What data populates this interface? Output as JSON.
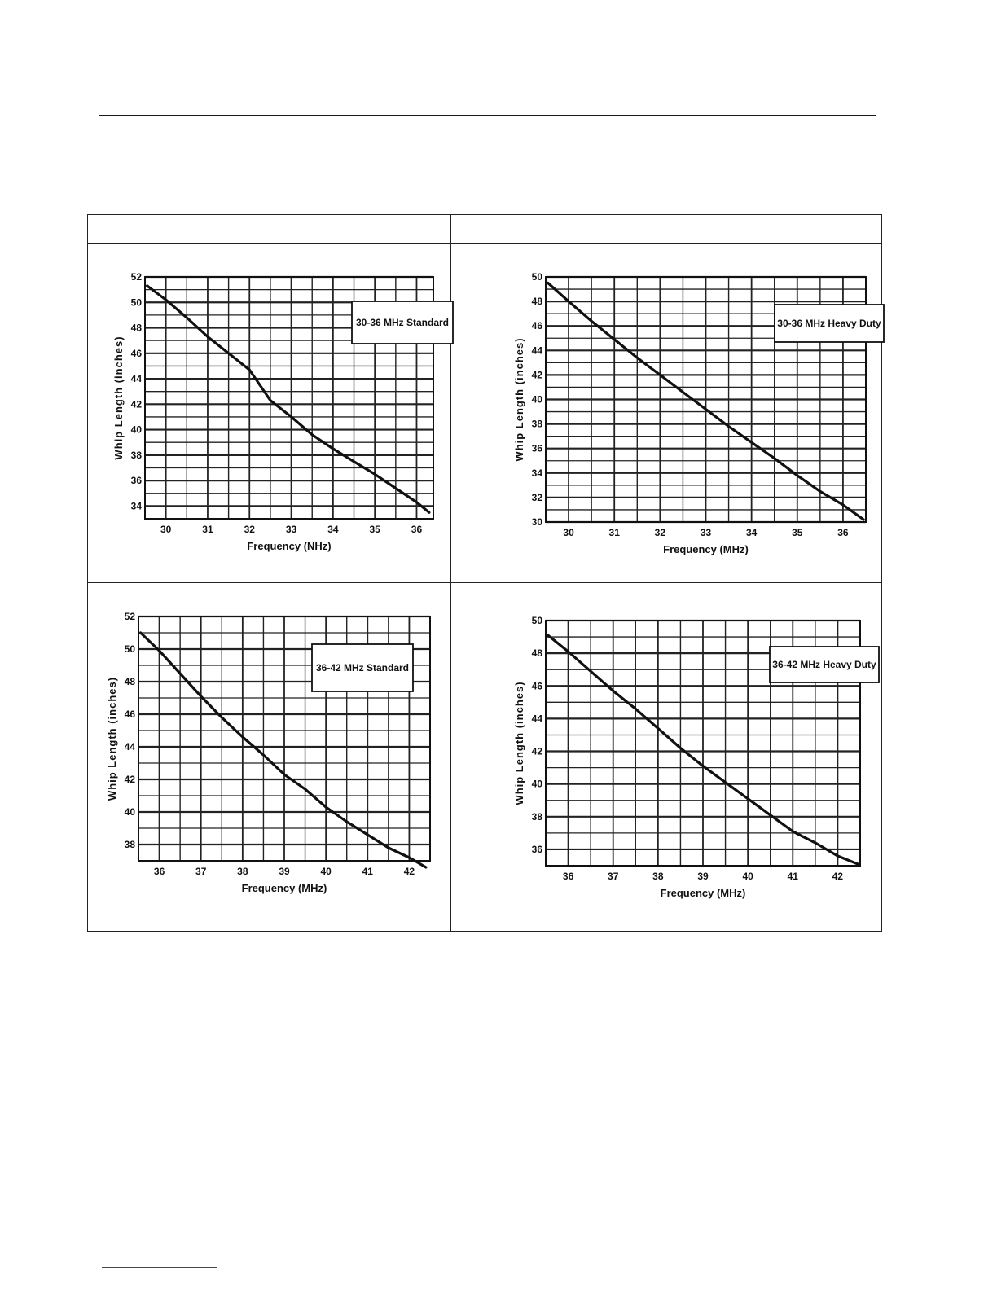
{
  "table": {
    "header_cells": [
      "",
      ""
    ]
  },
  "charts": [
    {
      "legend": "30-36  MHz  Standard",
      "ylabel": "Whip  Length  (inches)",
      "xlabel": "Frequency  (NHz)",
      "x_ticks": [
        "30",
        "31",
        "32",
        "33",
        "34",
        "35",
        "36"
      ],
      "y_ticks": [
        "52",
        "50",
        "48",
        "46",
        "44",
        "42",
        "40",
        "38",
        "36",
        "34"
      ]
    },
    {
      "legend": "30-36  MHz  Heavy  Duty",
      "ylabel": "Whip  Length  (inches)",
      "xlabel": "Frequency  (MHz)",
      "x_ticks": [
        "30",
        "31",
        "32",
        "33",
        "34",
        "35",
        "36"
      ],
      "y_ticks": [
        "50",
        "48",
        "46",
        "44",
        "42",
        "40",
        "38",
        "36",
        "34",
        "32",
        "30"
      ]
    },
    {
      "legend": "36-42  MHz  Standard",
      "ylabel": "Whip  Length  (inches)",
      "xlabel": "Frequency  (MHz)",
      "x_ticks": [
        "36",
        "37",
        "38",
        "39",
        "40",
        "41",
        "42"
      ],
      "y_ticks": [
        "52",
        "50",
        "48",
        "46",
        "44",
        "42",
        "40",
        "38"
      ]
    },
    {
      "legend": "36-42  MHz  Heavy  Duty",
      "ylabel": "Whip  Length  (inches)",
      "xlabel": "Frequency  (MHz)",
      "x_ticks": [
        "36",
        "37",
        "38",
        "39",
        "40",
        "41",
        "42"
      ],
      "y_ticks": [
        "50",
        "48",
        "46",
        "44",
        "42",
        "40",
        "38",
        "36"
      ]
    }
  ],
  "chart_data": [
    {
      "type": "line",
      "title": "30-36  MHz  Standard",
      "xlabel": "Frequency  (NHz)",
      "ylabel": "Whip  Length  (inches)",
      "xlim": [
        29.5,
        36.4
      ],
      "ylim": [
        33,
        52
      ],
      "grid": true,
      "legend_position": "top-right",
      "series": [
        {
          "name": "30-36  MHz  Standard",
          "x": [
            29.55,
            30,
            30.5,
            31,
            31.5,
            32,
            32.5,
            33,
            33.5,
            34,
            34.5,
            35,
            35.5,
            36,
            36.3
          ],
          "y": [
            51.3,
            50.2,
            48.8,
            47.3,
            46.0,
            44.7,
            42.3,
            41.0,
            39.6,
            38.5,
            37.5,
            36.5,
            35.4,
            34.3,
            33.5
          ]
        }
      ]
    },
    {
      "type": "line",
      "title": "30-36  MHz  Heavy  Duty",
      "xlabel": "Frequency  (MHz)",
      "ylabel": "Whip  Length  (inches)",
      "xlim": [
        29.5,
        36.5
      ],
      "ylim": [
        30,
        50
      ],
      "grid": true,
      "legend_position": "top-right",
      "series": [
        {
          "name": "30-36  MHz  Heavy  Duty",
          "x": [
            29.55,
            30,
            30.5,
            31,
            31.5,
            32,
            32.5,
            33,
            33.5,
            34,
            34.5,
            35,
            35.5,
            36,
            36.45
          ],
          "y": [
            49.5,
            48.0,
            46.4,
            44.9,
            43.4,
            42.0,
            40.6,
            39.2,
            37.8,
            36.5,
            35.2,
            33.8,
            32.5,
            31.4,
            30.2
          ]
        }
      ]
    },
    {
      "type": "line",
      "title": "36-42  MHz  Standard",
      "xlabel": "Frequency  (MHz)",
      "ylabel": "Whip  Length  (inches)",
      "xlim": [
        35.5,
        42.5
      ],
      "ylim": [
        37,
        52
      ],
      "grid": true,
      "legend_position": "top-right",
      "series": [
        {
          "name": "36-42  MHz  Standard",
          "x": [
            35.55,
            36,
            36.5,
            37,
            37.5,
            38,
            38.5,
            39,
            39.5,
            40,
            40.5,
            41,
            41.5,
            42,
            42.4
          ],
          "y": [
            51.0,
            49.9,
            48.5,
            47.1,
            45.8,
            44.6,
            43.5,
            42.3,
            41.4,
            40.3,
            39.4,
            38.6,
            37.8,
            37.2,
            36.6
          ]
        }
      ]
    },
    {
      "type": "line",
      "title": "36-42  MHz  Heavy  Duty",
      "xlabel": "Frequency  (MHz)",
      "ylabel": "Whip  Length  (inches)",
      "xlim": [
        35.5,
        42.5
      ],
      "ylim": [
        35,
        50
      ],
      "grid": true,
      "legend_position": "top-right",
      "series": [
        {
          "name": "36-42  MHz  Heavy  Duty",
          "x": [
            35.55,
            36,
            36.5,
            37,
            37.5,
            38,
            38.5,
            39,
            39.5,
            40,
            40.5,
            41,
            41.5,
            42,
            42.45
          ],
          "y": [
            49.1,
            48.1,
            46.9,
            45.7,
            44.6,
            43.4,
            42.2,
            41.1,
            40.1,
            39.1,
            38.1,
            37.1,
            36.4,
            35.6,
            35.1
          ]
        }
      ]
    }
  ]
}
